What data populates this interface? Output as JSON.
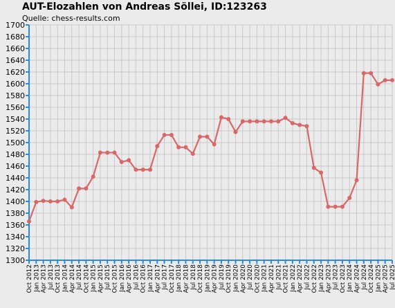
{
  "title": "AUT-Elozahlen von Andreas Söllei, ID:123263",
  "subtitle": "Quelle: chess-results.com",
  "chart_data": {
    "type": "line",
    "title": "AUT-Elozahlen von Andreas Söllei, ID:123263",
    "subtitle": "Quelle: chess-results.com",
    "xlabel": "",
    "ylabel": "",
    "ylim": [
      1300,
      1700
    ],
    "yticks": [
      1300,
      1320,
      1340,
      1360,
      1380,
      1400,
      1420,
      1440,
      1460,
      1480,
      1500,
      1520,
      1540,
      1560,
      1580,
      1600,
      1620,
      1640,
      1660,
      1680,
      1700
    ],
    "grid": true,
    "legend": "none",
    "line_color": "#d86868",
    "axis_color": "#2a8ae0",
    "grid_color": "#c8c8c8",
    "categories": [
      "Oct 2012",
      "Jan 2013",
      "Apr 2013",
      "Jul 2013",
      "Oct 2013",
      "Jan 2014",
      "Apr 2014",
      "Jul 2014",
      "Oct 2014",
      "Jan 2015",
      "Apr 2015",
      "Jul 2015",
      "Oct 2015",
      "Jan 2016",
      "Apr 2016",
      "Jul 2016",
      "Oct 2016",
      "Jan 2017",
      "Apr 2017",
      "Jul 2017",
      "Oct 2017",
      "Jan 2018",
      "Apr 2018",
      "Jul 2018",
      "Oct 2018",
      "Jan 2019",
      "Apr 2019",
      "Jul 2019",
      "Oct 2019",
      "Jan 2020",
      "Apr 2020",
      "Jul 2020",
      "Oct 2020",
      "Jan 2021",
      "Apr 2021",
      "Jul 2021",
      "Oct 2021",
      "Jan 2022",
      "Apr 2022",
      "Jul 2022",
      "Oct 2022",
      "Jan 2023",
      "Apr 2023",
      "Jul 2023",
      "Oct 2023",
      "Jan 2024",
      "Apr 2024",
      "Jul 2024",
      "Oct 2024",
      "Jan 2025",
      "Apr 2025",
      "Jul 2025"
    ],
    "values": [
      1366,
      1399,
      1401,
      1400,
      1400,
      1403,
      1390,
      1422,
      1422,
      1442,
      1483,
      1483,
      1483,
      1467,
      1470,
      1454,
      1454,
      1454,
      1494,
      1513,
      1513,
      1492,
      1492,
      1481,
      1510,
      1510,
      1497,
      1543,
      1540,
      1518,
      1536,
      1536,
      1536,
      1536,
      1536,
      1536,
      1542,
      1533,
      1530,
      1528,
      1457,
      1449,
      1391,
      1391,
      1391,
      1406,
      1436,
      1618,
      1618,
      1599,
      1606,
      1606
    ]
  }
}
